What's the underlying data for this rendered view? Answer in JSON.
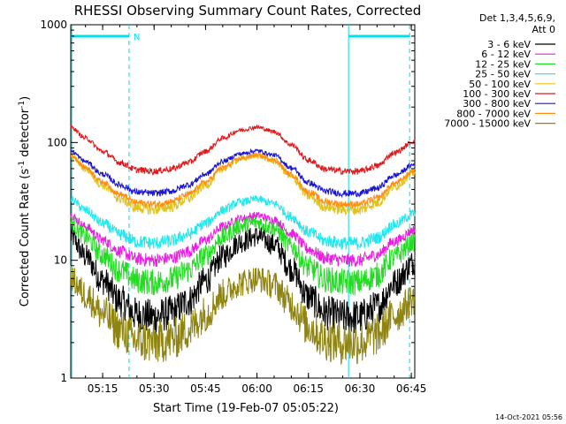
{
  "chart_data": {
    "type": "line",
    "title": "RHESSI Observing Summary Count Rates, Corrected",
    "xlabel": "Start Time (19-Feb-07 05:05:22)",
    "ylabel_main": "Corrected Count Rate (s",
    "ylabel_sup1": "-1",
    "ylabel_mid": " detector",
    "ylabel_sup2": "-1",
    "ylabel_end": ")",
    "yscale": "log",
    "ylim": [
      1,
      1000
    ],
    "xlim_minutes": [
      5.7,
      106
    ],
    "x_ticks": [
      {
        "min": 15,
        "label": "05:15"
      },
      {
        "min": 30,
        "label": "05:30"
      },
      {
        "min": 45,
        "label": "05:45"
      },
      {
        "min": 60,
        "label": "06:00"
      },
      {
        "min": 75,
        "label": "06:15"
      },
      {
        "min": 90,
        "label": "06:30"
      },
      {
        "min": 105,
        "label": "06:45"
      }
    ],
    "y_ticks": [
      {
        "value": 1,
        "label": "1"
      },
      {
        "value": 10,
        "label": "10"
      },
      {
        "value": 100,
        "label": "100"
      },
      {
        "value": 1000,
        "label": "1000"
      }
    ],
    "legend_header": [
      "Det 1,3,4,5,6,9,",
      "Att 0"
    ],
    "time_profile": {
      "x": [
        5.7,
        10,
        15,
        20,
        25,
        30,
        35,
        40,
        45,
        50,
        55,
        60,
        65,
        70,
        75,
        80,
        85,
        90,
        95,
        100,
        106
      ],
      "shape": [
        1.0,
        0.75,
        0.45,
        0.2,
        0.03,
        0.0,
        0.05,
        0.2,
        0.45,
        0.75,
        0.93,
        1.0,
        0.9,
        0.6,
        0.25,
        0.05,
        0.0,
        0.0,
        0.12,
        0.42,
        0.68
      ]
    },
    "series": [
      {
        "name": "3 - 6 keV",
        "color": "#000000",
        "low": 3.3,
        "high": 16,
        "noise": 0.16
      },
      {
        "name": "6 - 12 keV",
        "color": "#e81fe0",
        "low": 10,
        "high": 24,
        "noise": 0.06
      },
      {
        "name": "12 - 25 keV",
        "color": "#22dd22",
        "low": 6.5,
        "high": 21,
        "noise": 0.12
      },
      {
        "name": "25 - 50 keV",
        "color": "#22e8ee",
        "low": 14,
        "high": 33,
        "noise": 0.06
      },
      {
        "name": "50 - 100 keV",
        "color": "#e0c21c",
        "low": 27,
        "high": 78,
        "noise": 0.05
      },
      {
        "name": "100 - 300 keV",
        "color": "#e0181a",
        "low": 57,
        "high": 135,
        "noise": 0.03
      },
      {
        "name": "300 - 800 keV",
        "color": "#1a14d0",
        "low": 37,
        "high": 85,
        "noise": 0.03
      },
      {
        "name": "800 - 7000 keV",
        "color": "#ff8c10",
        "low": 30,
        "high": 78,
        "noise": 0.03
      },
      {
        "name": "7000 - 15000 keV",
        "color": "#8f8410",
        "low": 2.0,
        "high": 7.0,
        "noise": 0.2
      }
    ],
    "annotations": {
      "saa_label": "N",
      "saa_intervals": [
        [
          5.7,
          22.7
        ],
        [
          86.7,
          104.5
        ]
      ],
      "dashed_lines_min": [
        22.7,
        104.5
      ],
      "solid_lines_min": [
        6.0,
        86.7
      ],
      "color": "#00e0e8"
    }
  },
  "footer": {
    "timestamp": "14-Oct-2021 05:56"
  }
}
